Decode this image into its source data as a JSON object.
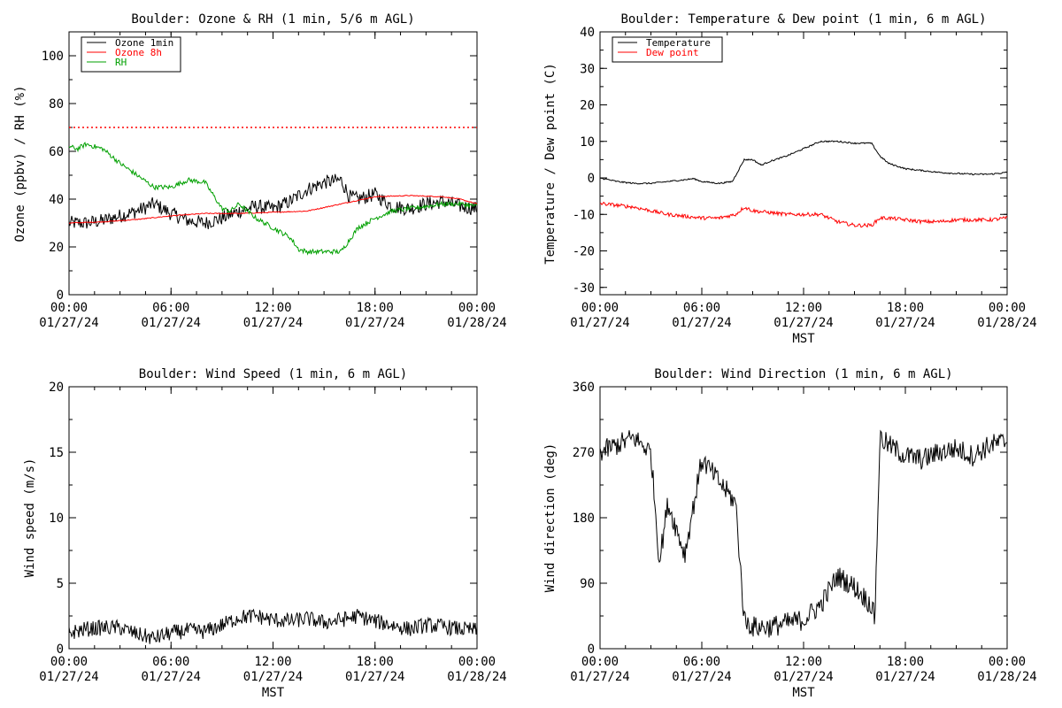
{
  "chart_data": [
    {
      "type": "line",
      "title": "Boulder: Ozone & RH (1 min, 5/6 m AGL)",
      "ylabel": "Ozone (ppbv) / RH (%)",
      "xlabel": "",
      "xlim_hours": [
        0,
        24
      ],
      "ylim": [
        0,
        110
      ],
      "yticks": [
        0,
        20,
        40,
        60,
        80,
        100
      ],
      "xtick_times": [
        "00:00",
        "06:00",
        "12:00",
        "18:00",
        "00:00"
      ],
      "xtick_dates": [
        "01/27/24",
        "01/27/24",
        "01/27/24",
        "01/27/24",
        "01/28/24"
      ],
      "legend": "top-left",
      "reference_line": {
        "value": 70,
        "color": "#ff0000",
        "style": "dotted"
      },
      "series": [
        {
          "name": "Ozone 1min",
          "color": "#000000",
          "noise": 3,
          "x": [
            0,
            1,
            2,
            3,
            4,
            5,
            6,
            7,
            8,
            9,
            10,
            11,
            12,
            13,
            14,
            15,
            16,
            16.5,
            17,
            18,
            19,
            20,
            21,
            22,
            23,
            24
          ],
          "values": [
            30,
            30,
            31,
            33,
            35,
            38,
            34,
            31,
            30,
            32,
            35,
            37,
            36,
            39,
            44,
            47,
            48,
            41,
            40,
            42,
            37,
            36,
            38,
            39,
            37,
            36
          ]
        },
        {
          "name": "Ozone 8h",
          "color": "#ff0000",
          "noise": 0.2,
          "x": [
            0,
            2,
            4,
            6,
            8,
            10,
            12,
            14,
            16,
            18,
            20,
            22,
            23,
            24
          ],
          "values": [
            30,
            30.5,
            31.5,
            33,
            34,
            34,
            34.5,
            35,
            38,
            41,
            41.5,
            41,
            40,
            38
          ]
        },
        {
          "name": "RH",
          "color": "#00a000",
          "noise": 1,
          "x": [
            0,
            0.5,
            1,
            2,
            3,
            4,
            5,
            6,
            7,
            8,
            9,
            9.5,
            10,
            11,
            12,
            13,
            13.5,
            14,
            15,
            16,
            17,
            18,
            19,
            20,
            21,
            22,
            23,
            24
          ],
          "values": [
            62,
            61,
            63,
            61,
            55,
            50,
            45,
            45,
            48,
            47,
            36,
            35,
            38,
            32,
            28,
            24,
            19,
            18,
            18,
            18,
            28,
            32,
            35,
            36,
            37,
            38,
            38,
            37
          ]
        }
      ]
    },
    {
      "type": "line",
      "title": "Boulder: Temperature & Dew point (1 min, 6 m AGL)",
      "ylabel": "Temperature / Dew point (C)",
      "xlabel": "MST",
      "xlim_hours": [
        0,
        24
      ],
      "ylim": [
        -32,
        40
      ],
      "yticks": [
        -30,
        -20,
        -10,
        0,
        10,
        20,
        30,
        40
      ],
      "xtick_times": [
        "00:00",
        "06:00",
        "12:00",
        "18:00",
        "00:00"
      ],
      "xtick_dates": [
        "01/27/24",
        "01/27/24",
        "01/27/24",
        "01/27/24",
        "01/28/24"
      ],
      "legend": "top-left",
      "series": [
        {
          "name": "Temperature",
          "color": "#000000",
          "noise": 0.2,
          "x": [
            0,
            1,
            2,
            3,
            4,
            5,
            5.5,
            6,
            7,
            7.8,
            8.5,
            9,
            9.5,
            10,
            11,
            12,
            13,
            14,
            15,
            16,
            16.5,
            17,
            18,
            19,
            20,
            21,
            22,
            23,
            24
          ],
          "values": [
            0,
            -1,
            -1.5,
            -1.5,
            -1,
            -0.5,
            -0.2,
            -1,
            -1.5,
            -1,
            5,
            5,
            3.5,
            4.5,
            6,
            8,
            10,
            10,
            9.5,
            9.5,
            6,
            4,
            2.5,
            2,
            1.5,
            1.2,
            1,
            1,
            1.5
          ]
        },
        {
          "name": "Dew point",
          "color": "#ff0000",
          "noise": 0.5,
          "x": [
            0,
            1,
            2,
            3,
            4,
            5,
            6,
            7,
            8,
            8.5,
            9,
            10,
            11,
            12,
            13,
            14,
            15,
            16,
            16.5,
            17,
            18,
            19,
            20,
            21,
            22,
            23,
            24
          ],
          "values": [
            -7,
            -7.5,
            -8,
            -9,
            -10,
            -10.5,
            -11,
            -11,
            -10,
            -8,
            -9,
            -9.5,
            -10,
            -10,
            -10,
            -12,
            -13,
            -13,
            -11,
            -11,
            -11.5,
            -12,
            -12,
            -11.5,
            -11.5,
            -11.5,
            -11
          ]
        }
      ]
    },
    {
      "type": "line",
      "title": "Boulder: Wind Speed (1 min, 6 m AGL)",
      "ylabel": "Wind speed (m/s)",
      "xlabel": "MST",
      "xlim_hours": [
        0,
        24
      ],
      "ylim": [
        0,
        20
      ],
      "yticks": [
        0,
        5,
        10,
        15,
        20
      ],
      "xtick_times": [
        "00:00",
        "06:00",
        "12:00",
        "18:00",
        "00:00"
      ],
      "xtick_dates": [
        "01/27/24",
        "01/27/24",
        "01/27/24",
        "01/27/24",
        "01/28/24"
      ],
      "series": [
        {
          "name": "",
          "color": "#000000",
          "noise": 0.6,
          "x": [
            0,
            1,
            2,
            3,
            4,
            5,
            6,
            7,
            8,
            9,
            10,
            11,
            12,
            13,
            14,
            15,
            16,
            17,
            18,
            19,
            20,
            21,
            22,
            23,
            24
          ],
          "values": [
            1.2,
            1.5,
            1.6,
            1.6,
            1.1,
            0.8,
            1.2,
            1.4,
            1.3,
            1.8,
            2.4,
            2.5,
            2.2,
            2.1,
            2.3,
            2.0,
            2.2,
            2.5,
            2.1,
            1.8,
            1.5,
            1.8,
            1.7,
            1.5,
            1.4
          ]
        }
      ]
    },
    {
      "type": "line",
      "title": "Boulder: Wind Direction (1 min, 6 m AGL)",
      "ylabel": "Wind direction (deg)",
      "xlabel": "MST",
      "xlim_hours": [
        0,
        24
      ],
      "ylim": [
        0,
        360
      ],
      "yticks": [
        0,
        90,
        180,
        270,
        360
      ],
      "xtick_times": [
        "00:00",
        "06:00",
        "12:00",
        "18:00",
        "00:00"
      ],
      "xtick_dates": [
        "01/27/24",
        "01/27/24",
        "01/27/24",
        "01/27/24",
        "01/28/24"
      ],
      "series": [
        {
          "name": "",
          "color": "#000000",
          "noise": 15,
          "x": [
            0,
            1,
            2,
            3,
            3.5,
            4,
            5,
            6,
            7,
            8,
            8.5,
            9,
            10,
            11,
            12,
            13,
            14,
            15,
            16,
            16.2,
            16.5,
            17,
            18,
            19,
            20,
            21,
            22,
            23,
            24
          ],
          "values": [
            270,
            280,
            290,
            270,
            120,
            200,
            130,
            260,
            230,
            200,
            40,
            30,
            30,
            35,
            40,
            60,
            100,
            85,
            60,
            40,
            290,
            280,
            265,
            260,
            270,
            275,
            265,
            280,
            285
          ]
        }
      ]
    }
  ]
}
